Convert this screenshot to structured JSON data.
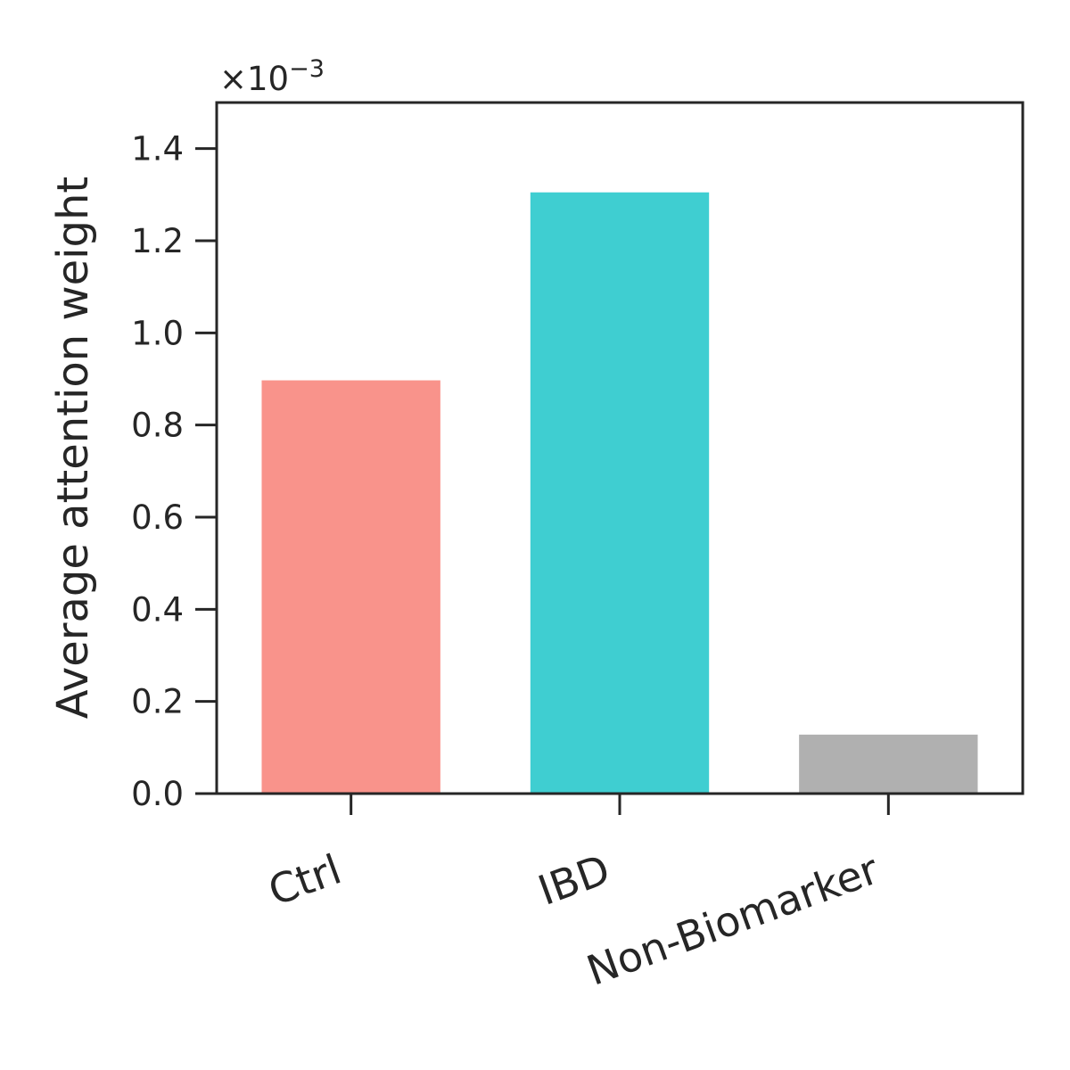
{
  "chart_data": {
    "type": "bar",
    "categories": [
      "Ctrl",
      "IBD",
      "Non-Biomarker"
    ],
    "values": [
      0.000897,
      0.001305,
      0.000128
    ],
    "colors": [
      "#f9938b",
      "#3fced1",
      "#b0b0b0"
    ],
    "ylabel": "Average attention weight",
    "ylim": [
      0,
      0.0015
    ],
    "yticks": [
      0.0,
      0.2,
      0.4,
      0.6,
      0.8,
      1.0,
      1.2,
      1.4
    ],
    "ytick_labels": [
      "0.0",
      "0.2",
      "0.4",
      "0.6",
      "0.8",
      "1.0",
      "1.2",
      "1.4"
    ],
    "y_scale_factor": 0.001,
    "offset_text": "×10",
    "offset_exponent": "−3",
    "grid": false
  }
}
